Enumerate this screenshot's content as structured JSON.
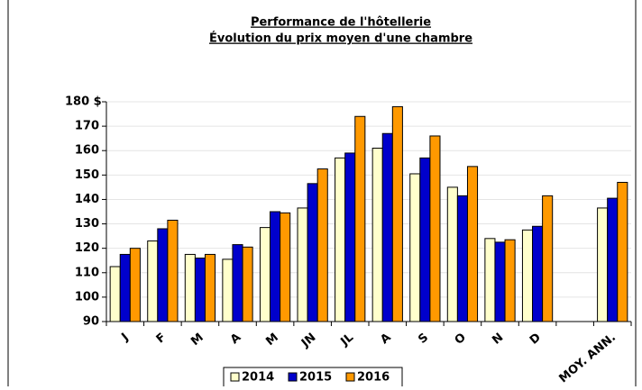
{
  "chart_data": {
    "type": "bar",
    "title": "Performance de l'hôtellerie",
    "subtitle": "Évolution du prix moyen d'une chambre",
    "categories": [
      "J",
      "F",
      "M",
      "A",
      "M",
      "JN",
      "JL",
      "A",
      "S",
      "O",
      "N",
      "D",
      null,
      "MOY. ANN."
    ],
    "series": [
      {
        "name": "2014",
        "color": "#ffffcc",
        "values": [
          112.5,
          123,
          117.5,
          115.5,
          128.5,
          136.5,
          157,
          161,
          150.5,
          145,
          124,
          127.5,
          null,
          136.5
        ]
      },
      {
        "name": "2015",
        "color": "#0000cc",
        "values": [
          117.5,
          128,
          116,
          121.5,
          135,
          146.5,
          159,
          167,
          157,
          141.5,
          122.5,
          129,
          null,
          140.5
        ]
      },
      {
        "name": "2016",
        "color": "#ff9900",
        "values": [
          120,
          131.5,
          117.5,
          120.5,
          134.5,
          152.5,
          174,
          178,
          166,
          153.5,
          123.5,
          141.5,
          null,
          147
        ]
      }
    ],
    "ylim": [
      90,
      180
    ],
    "yticks": [
      90,
      100,
      110,
      120,
      130,
      140,
      150,
      160,
      170,
      {
        "value": 180,
        "label": "180 $"
      }
    ],
    "grid": true,
    "legend": "bottom"
  }
}
